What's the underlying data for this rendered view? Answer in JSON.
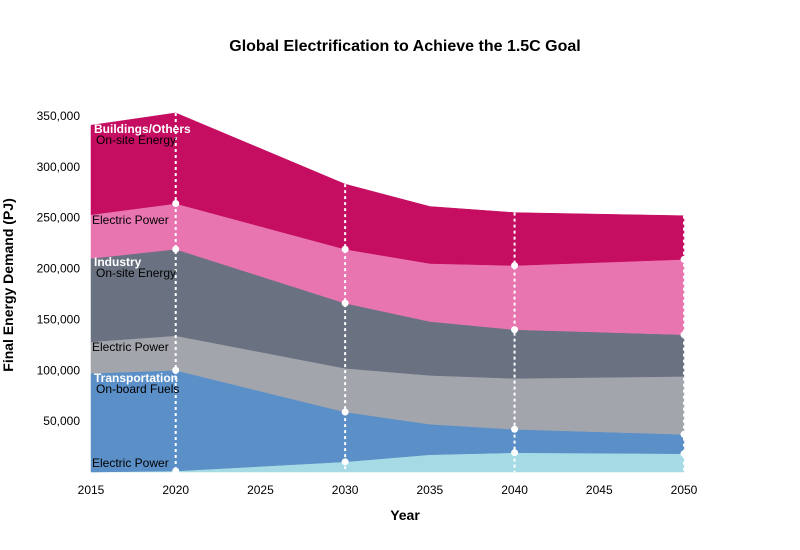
{
  "chart_data": {
    "type": "area",
    "title": "Global Electrification to Achieve the 1.5C Goal",
    "xlabel": "Year",
    "ylabel": "Final Energy Demand (PJ)",
    "x": [
      2015,
      2020,
      2030,
      2035,
      2040,
      2050
    ],
    "x_ticks": [
      "2015",
      "2020",
      "2025",
      "2030",
      "2035",
      "2040",
      "2045",
      "2050"
    ],
    "y_ticks": [
      "50,000",
      "100,000",
      "150,000",
      "200,000",
      "250,000",
      "300,000",
      "350,000"
    ],
    "ylim": [
      0,
      350000
    ],
    "xlim": [
      2015,
      2050
    ],
    "stacked": true,
    "grid": false,
    "marker_years": [
      2020,
      2030,
      2040,
      2050
    ],
    "series": [
      {
        "name": "Transportation Electric Power",
        "color": "#a6dbe5",
        "values": [
          0,
          1000,
          10000,
          17000,
          19000,
          18000
        ]
      },
      {
        "name": "Transportation On-board Fuels",
        "color": "#5b8fc7",
        "values": [
          97000,
          99000,
          49000,
          30000,
          23000,
          19000
        ]
      },
      {
        "name": "Industry Electric Power",
        "color": "#a3a5ac",
        "values": [
          31000,
          34000,
          43000,
          48000,
          50000,
          57000
        ]
      },
      {
        "name": "Industry On-site Energy",
        "color": "#6a7282",
        "values": [
          82000,
          85000,
          64000,
          53000,
          48000,
          41000
        ]
      },
      {
        "name": "Buildings/Others Electric Power",
        "color": "#e875b0",
        "values": [
          43000,
          45000,
          53000,
          57000,
          63000,
          74000
        ]
      },
      {
        "name": "Buildings/Others On-site Energy",
        "color": "#c50d61",
        "values": [
          88000,
          89000,
          64000,
          56000,
          52000,
          43000
        ]
      }
    ],
    "labels": {
      "buildings_group": "Buildings/Others",
      "buildings_onsite": "On-site Energy",
      "buildings_electric": "Electric Power",
      "industry_group": "Industry",
      "industry_onsite": "On-site Energy",
      "industry_electric": "Electric Power",
      "transport_group": "Transportation",
      "transport_fuels": "On-board Fuels",
      "transport_electric": "Electric Power"
    }
  }
}
